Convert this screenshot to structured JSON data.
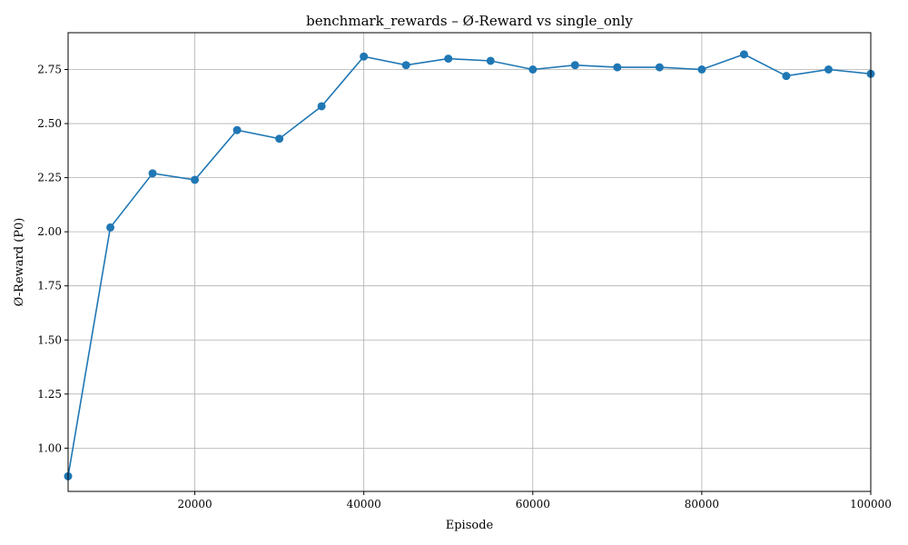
{
  "chart_data": {
    "type": "line",
    "title": "benchmark_rewards – Ø-Reward vs single_only",
    "xlabel": "Episode",
    "ylabel": "Ø-Reward (P0)",
    "xlim": [
      5000,
      100000
    ],
    "ylim": [
      0.8,
      2.92
    ],
    "xticks": [
      20000,
      40000,
      60000,
      80000,
      100000
    ],
    "yticks": [
      1.0,
      1.25,
      1.5,
      1.75,
      2.0,
      2.25,
      2.5,
      2.75
    ],
    "ytick_labels": [
      "1.00",
      "1.25",
      "1.50",
      "1.75",
      "2.00",
      "2.25",
      "2.50",
      "2.75"
    ],
    "xtick_labels": [
      "20000",
      "40000",
      "60000",
      "80000",
      "100000"
    ],
    "grid": true,
    "series": [
      {
        "color": "#1f77b4",
        "marker": "circle",
        "x": [
          5000,
          10000,
          15000,
          20000,
          25000,
          30000,
          35000,
          40000,
          45000,
          50000,
          55000,
          60000,
          65000,
          70000,
          75000,
          80000,
          85000,
          90000,
          95000,
          100000
        ],
        "y": [
          0.87,
          2.02,
          2.27,
          2.24,
          2.47,
          2.43,
          2.58,
          2.81,
          2.77,
          2.8,
          2.79,
          2.75,
          2.77,
          2.76,
          2.76,
          2.75,
          2.82,
          2.72,
          2.75,
          2.73
        ]
      }
    ]
  }
}
